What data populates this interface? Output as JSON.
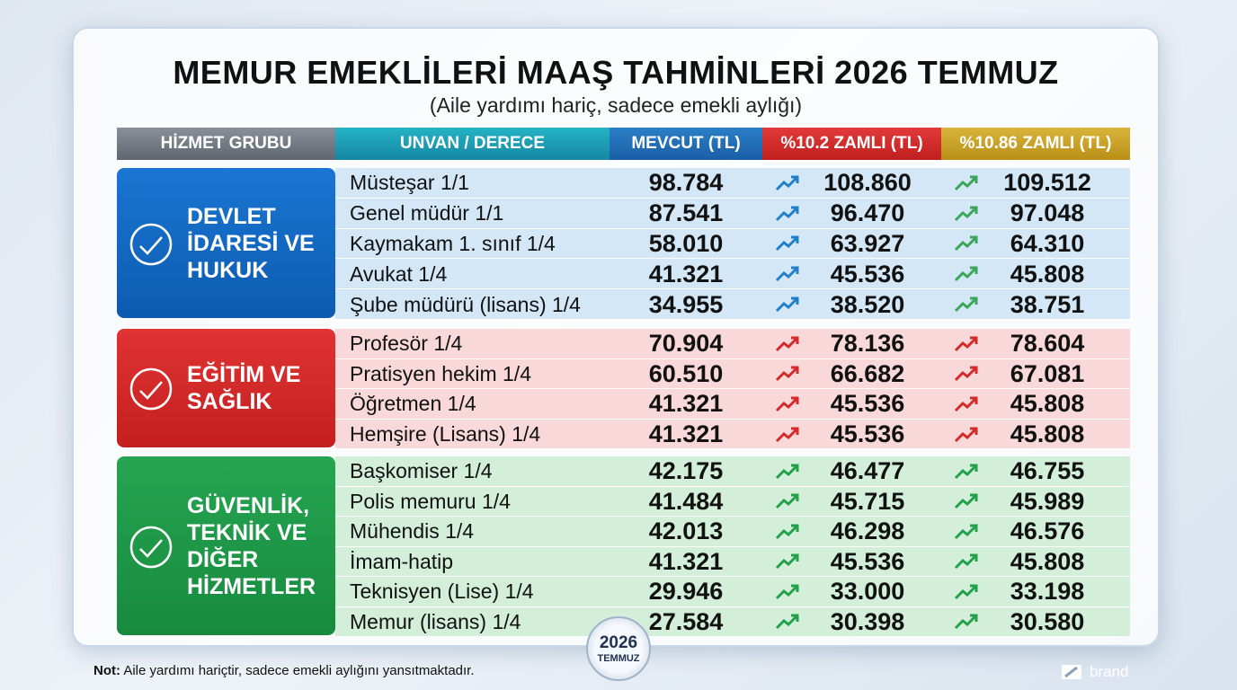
{
  "header": {
    "title": "MEMUR EMEKLİLERİ MAAŞ TAHMİNLERİ 2026 TEMMUZ",
    "subtitle": "(Aile yardımı hariç, sadece emekli aylığı)"
  },
  "table": {
    "columns": [
      "HİZMET GRUBU",
      "UNVAN / DERECE",
      "MEVCUT (TL)",
      "%10.2 ZAMLI (TL)",
      "%10.86 ZAMLI (TL)"
    ],
    "groups": [
      {
        "name": "DEVLET İDARESİ VE HUKUK",
        "rows": [
          [
            "Müsteşar 1/1",
            "98.784",
            "108.860",
            "109.512"
          ],
          [
            "Genel müdür 1/1",
            "87.541",
            "96.470",
            "97.048"
          ],
          [
            "Kaymakam 1. sınıf 1/4",
            "58.010",
            "63.927",
            "64.310"
          ],
          [
            "Avukat 1/4",
            "41.321",
            "45.536",
            "45.808"
          ],
          [
            "Şube müdürü (lisans) 1/4",
            "34.955",
            "38.520",
            "38.751"
          ]
        ]
      },
      {
        "name": "EĞİTİM VE SAĞLIK",
        "rows": [
          [
            "Profesör 1/4",
            "70.904",
            "78.136",
            "78.604"
          ],
          [
            "Pratisyen hekim 1/4",
            "60.510",
            "66.682",
            "67.081"
          ],
          [
            "Öğretmen 1/4",
            "41.321",
            "45.536",
            "45.808"
          ],
          [
            "Hemşire (Lisans) 1/4",
            "41.321",
            "45.536",
            "45.808"
          ]
        ]
      },
      {
        "name": "GÜVENLİK, TEKNİK VE DİĞER HİZMETLER",
        "rows": [
          [
            "Başkomiser 1/4",
            "42.175",
            "46.477",
            "46.755"
          ],
          [
            "Polis memuru 1/4",
            "41.484",
            "45.715",
            "45.989"
          ],
          [
            "Mühendis 1/4",
            "42.013",
            "46.298",
            "46.576"
          ],
          [
            "İmam-hatip",
            "41.321",
            "45.536",
            "45.808"
          ],
          [
            "Teknisyen (Lise) 1/4",
            "29.946",
            "33.000",
            "33.198"
          ],
          [
            "Memur (lisans) 1/4",
            "27.584",
            "30.398",
            "30.580"
          ]
        ]
      }
    ]
  },
  "badge": {
    "year": "2026",
    "month": "TEMMUZ"
  },
  "footer": {
    "label": "Not:",
    "text": "Aile yardımı hariçtir, sadece emekli aylığını yansıtmaktadır."
  },
  "brand": "brand"
}
